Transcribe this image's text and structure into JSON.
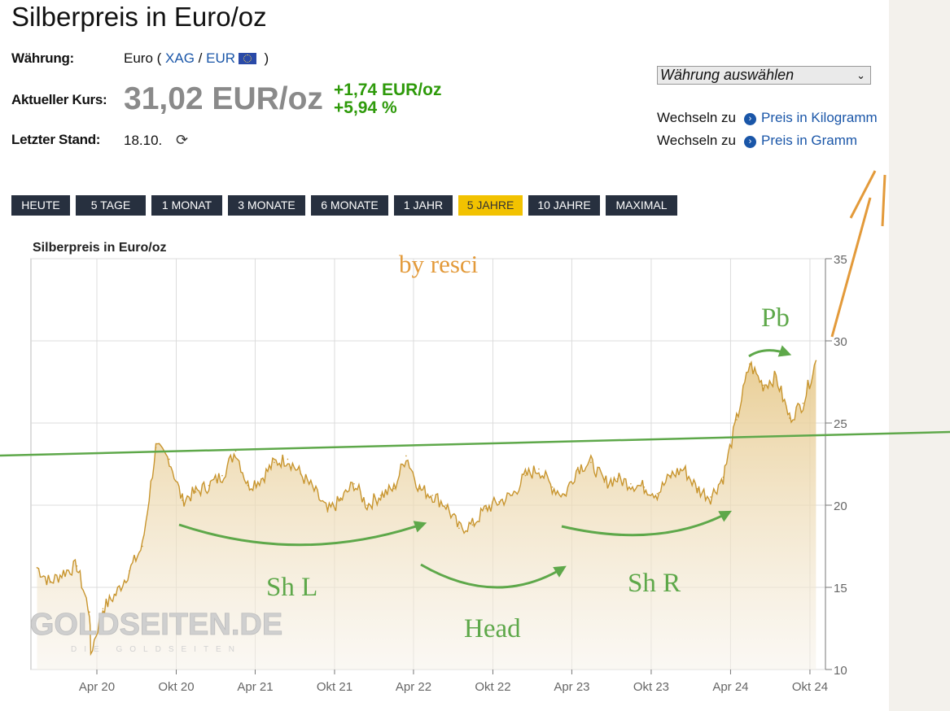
{
  "page": {
    "title": "Silberpreis in Euro/oz",
    "currency_label": "Währung:",
    "currency_value": "Euro",
    "currency_code_1": "XAG",
    "currency_code_2": "EUR",
    "current_label": "Aktueller Kurs:",
    "current_price": "31,02 EUR/oz",
    "change_abs": "+1,74 EUR/oz",
    "change_pct": "+5,94 %",
    "last_label": "Letzter Stand:",
    "last_value": "18.10.",
    "currency_select": "Währung auswählen",
    "switch_prefix": "Wechseln zu",
    "switch_kg": "Preis in Kilogramm",
    "switch_g": "Preis in Gramm",
    "colors": {
      "positive": "#2e9a0a",
      "link": "#1a56a8",
      "tab_bg": "#27303f",
      "tab_active": "#f2c200"
    }
  },
  "tabs": [
    {
      "label": "HEUTE",
      "active": false
    },
    {
      "label": "5 TAGE",
      "active": false
    },
    {
      "label": "1 MONAT",
      "active": false
    },
    {
      "label": "3 MONATE",
      "active": false
    },
    {
      "label": "6 MONATE",
      "active": false
    },
    {
      "label": "1 JAHR",
      "active": false
    },
    {
      "label": "5 JAHRE",
      "active": true
    },
    {
      "label": "10 JAHRE",
      "active": false
    },
    {
      "label": "MAXIMAL",
      "active": false
    }
  ],
  "chart_data": {
    "type": "area",
    "title": "Silberpreis in Euro/oz",
    "watermark": "GOLDSEITEN.DE",
    "watermark_sub": "DIE GOLDSEITEN",
    "x_tick_labels": [
      "Apr 20",
      "Okt 20",
      "Apr 21",
      "Okt 21",
      "Apr 22",
      "Okt 22",
      "Apr 23",
      "Okt 23",
      "Apr 24",
      "Okt 24"
    ],
    "y_ticks": [
      10,
      15,
      20,
      25,
      30,
      35
    ],
    "ylim": [
      10,
      35
    ],
    "y_axis_side": "right",
    "grid": true,
    "series": [
      {
        "color": "#c8952e",
        "x": [
          "2019-11",
          "2019-12",
          "2020-01",
          "2020-02",
          "2020-03",
          "2020-03-18",
          "2020-04",
          "2020-05",
          "2020-06",
          "2020-07",
          "2020-08",
          "2020-09",
          "2020-10",
          "2020-11",
          "2020-12",
          "2021-01",
          "2021-02",
          "2021-03",
          "2021-04",
          "2021-05",
          "2021-06",
          "2021-07",
          "2021-08",
          "2021-09",
          "2021-10",
          "2021-11",
          "2021-12",
          "2022-01",
          "2022-02",
          "2022-03",
          "2022-04",
          "2022-05",
          "2022-06",
          "2022-07",
          "2022-08",
          "2022-09",
          "2022-10",
          "2022-11",
          "2022-12",
          "2023-01",
          "2023-02",
          "2023-03",
          "2023-04",
          "2023-05",
          "2023-06",
          "2023-07",
          "2023-08",
          "2023-09",
          "2023-10",
          "2023-11",
          "2023-12",
          "2024-01",
          "2024-02",
          "2024-03",
          "2024-04",
          "2024-05",
          "2024-06",
          "2024-07",
          "2024-08",
          "2024-09",
          "2024-10"
        ],
        "values": [
          16.2,
          15.3,
          15.9,
          16.3,
          13.5,
          11.0,
          13.7,
          14.6,
          16.0,
          17.5,
          23.5,
          22.8,
          20.3,
          20.8,
          21.2,
          21.8,
          23.3,
          21.2,
          21.6,
          22.6,
          22.8,
          21.9,
          20.9,
          19.6,
          20.3,
          21.3,
          20.0,
          20.6,
          21.0,
          23.0,
          21.0,
          20.6,
          20.0,
          18.6,
          18.8,
          19.8,
          20.2,
          20.6,
          21.8,
          22.2,
          21.1,
          20.6,
          22.3,
          22.6,
          21.4,
          21.6,
          21.3,
          21.1,
          20.7,
          21.8,
          22.2,
          21.0,
          20.5,
          21.7,
          25.2,
          28.6,
          27.3,
          27.8,
          25.3,
          26.2,
          28.8
        ]
      }
    ],
    "annotations": [
      {
        "text": "by resci",
        "kind": "signature"
      },
      {
        "text": "Pb"
      },
      {
        "text": "Sh L"
      },
      {
        "text": "Head"
      },
      {
        "text": "Sh R"
      }
    ]
  }
}
